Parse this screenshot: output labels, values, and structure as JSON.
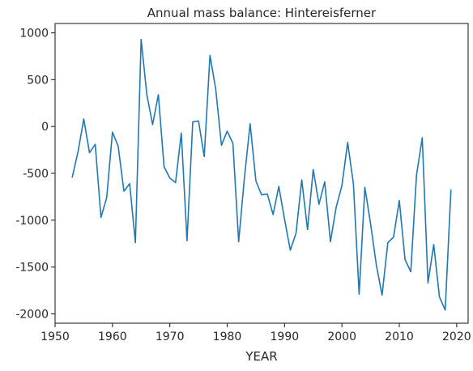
{
  "chart_data": {
    "type": "line",
    "title": "Annual mass balance: Hintereisferner",
    "xlabel": "YEAR",
    "ylabel": "",
    "xlim": [
      1950,
      2022
    ],
    "ylim": [
      -2100,
      1100
    ],
    "xticks": [
      1950,
      1960,
      1970,
      1980,
      1990,
      2000,
      2010,
      2020
    ],
    "yticks": [
      -2000,
      -1500,
      -1000,
      -500,
      0,
      500,
      1000
    ],
    "grid": false,
    "line_color": "#1f77b4",
    "series": [
      {
        "x": [
          1953,
          1954,
          1955,
          1956,
          1957,
          1958,
          1959,
          1960,
          1961,
          1962,
          1963,
          1964,
          1965,
          1966,
          1967,
          1968,
          1969,
          1970,
          1971,
          1972,
          1973,
          1974,
          1975,
          1976,
          1977,
          1978,
          1979,
          1980,
          1981,
          1982,
          1983,
          1984,
          1985,
          1986,
          1987,
          1988,
          1989,
          1990,
          1991,
          1992,
          1993,
          1994,
          1995,
          1996,
          1997,
          1998,
          1999,
          2000,
          2001,
          2002,
          2003,
          2004,
          2005,
          2006,
          2007,
          2008,
          2009,
          2010,
          2011,
          2012,
          2013,
          2014,
          2015,
          2016,
          2017,
          2018,
          2019
        ],
        "values": [
          -540,
          -270,
          80,
          -280,
          -190,
          -970,
          -760,
          -60,
          -210,
          -690,
          -610,
          -1240,
          930,
          340,
          20,
          340,
          -430,
          -550,
          -600,
          -70,
          -1220,
          50,
          60,
          -320,
          760,
          400,
          -200,
          -50,
          -180,
          -1230,
          -550,
          30,
          -580,
          -730,
          -720,
          -940,
          -640,
          -990,
          -1320,
          -1140,
          -570,
          -1100,
          -460,
          -830,
          -590,
          -1230,
          -860,
          -630,
          -170,
          -610,
          -1790,
          -650,
          -1040,
          -1480,
          -1800,
          -1240,
          -1180,
          -790,
          -1420,
          -1550,
          -520,
          -120,
          -1670,
          -1260,
          -1820,
          -1960,
          -680
        ]
      }
    ]
  }
}
